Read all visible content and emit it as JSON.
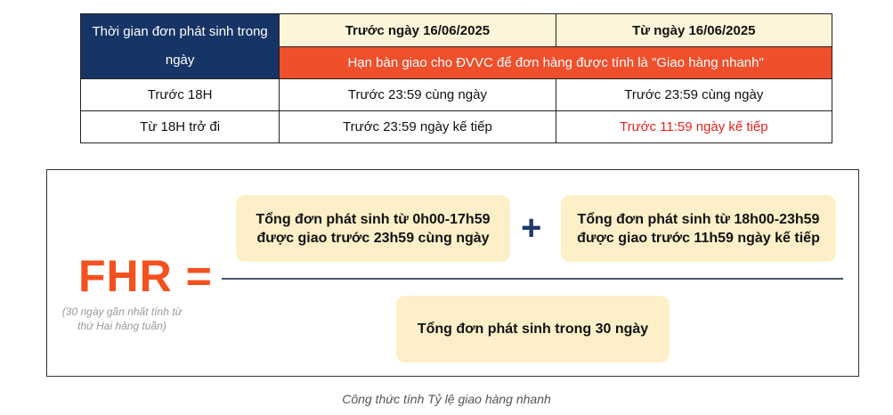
{
  "table": {
    "header_col": "Thời gian đơn phát sinh trong ngày",
    "header_before": "Trước ngày 16/06/2025",
    "header_after": "Từ ngày 16/06/2025",
    "subheader": "Hạn bàn giao cho ĐVVC để đơn hàng được tính là \"Giao hàng nhanh\"",
    "rows": [
      [
        "Trước 18H",
        "Trước 23:59 cùng ngày",
        "Trước 23:59 cùng ngày"
      ],
      [
        "Từ 18H trở đi",
        "Trước 23:59 ngày kế tiếp",
        "Trước 11:59 ngày kế tiếp"
      ]
    ],
    "highlight_color": "#e8231f"
  },
  "formula": {
    "label": "FHR =",
    "note": "(30 ngày gần nhất tính từ thứ Hai hàng tuần)",
    "numerator_left": "Tổng đơn phát sinh từ 0h00-17h59 được giao trước 23h59 cùng ngày",
    "plus": "+",
    "numerator_right": "Tổng đơn phát sinh từ 18h00-23h59 được giao trước 11h59 ngày kế tiếp",
    "denominator": "Tổng đơn phát sinh trong 30 ngày",
    "accent_color": "#f4511e"
  },
  "caption": "Công thức tính Tỷ lệ giao hàng nhanh"
}
